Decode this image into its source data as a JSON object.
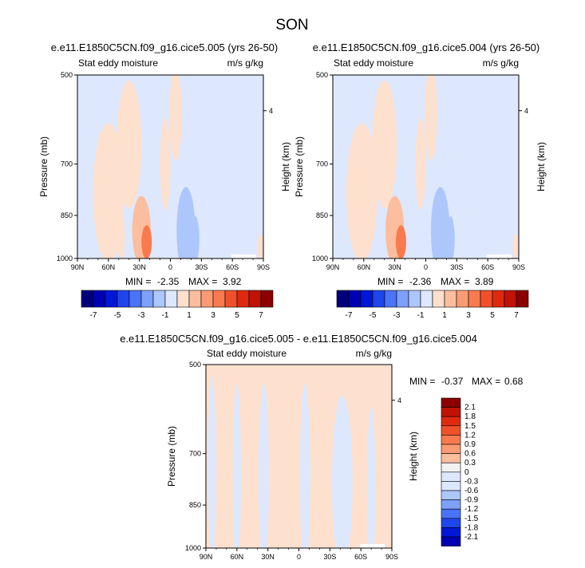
{
  "page_title": "SON",
  "palette": {
    "neg": [
      "#00007d",
      "#0000b3",
      "#0018d6",
      "#1f45ec",
      "#4a74f7",
      "#7da0fa",
      "#adc6fb",
      "#dde8fe"
    ],
    "zero": "#f2f2f2",
    "pos": [
      "#fde0cd",
      "#fcbe9e",
      "#fb9b74",
      "#f97a4e",
      "#f1512a",
      "#df2a10",
      "#c01306",
      "#8b0000"
    ],
    "missing": "#ffffff"
  },
  "chart_data": [
    {
      "type": "heatmap",
      "title": "e.e11.E1850C5CN.f09_g16.cice5.005 (yrs 26-50)",
      "left_string": "Stat eddy moisture",
      "right_string": "m/s g/kg",
      "ylabel": "Pressure (mb)",
      "ylabel_right": "Height (km)",
      "xticks": [
        "90N",
        "60N",
        "30N",
        "0",
        "30S",
        "60S",
        "90S"
      ],
      "yticks": [
        "500",
        "700",
        "850",
        "1000"
      ],
      "yticks_right": [
        "4"
      ],
      "min_label": "MIN = ",
      "min": "-2.35",
      "max_label": "MAX = ",
      "max": "3.92",
      "levels": [
        "-7",
        "-5",
        "-3",
        "-1",
        "1",
        "3",
        "5",
        "7"
      ],
      "blobs": [
        {
          "lat": 60,
          "p": 780,
          "rx": 15,
          "ry": 200,
          "v": 1
        },
        {
          "lat": 40,
          "p": 650,
          "rx": 12,
          "ry": 160,
          "v": 1
        },
        {
          "lat": 28,
          "p": 900,
          "rx": 9,
          "ry": 130,
          "v": 2
        },
        {
          "lat": 23,
          "p": 940,
          "rx": 5,
          "ry": 60,
          "v": 4
        },
        {
          "lat": 48,
          "p": 920,
          "rx": 4,
          "ry": 80,
          "v": 1
        },
        {
          "lat": 5,
          "p": 700,
          "rx": 5,
          "ry": 120,
          "v": 1
        },
        {
          "lat": -15,
          "p": 900,
          "rx": 9,
          "ry": 180,
          "v": -2
        },
        {
          "lat": -24,
          "p": 930,
          "rx": 4,
          "ry": 90,
          "v": -2
        },
        {
          "lat": -55,
          "p": 950,
          "rx": 8,
          "ry": 110,
          "v": -1
        },
        {
          "lat": -75,
          "p": 880,
          "rx": 10,
          "ry": 160,
          "v": -1
        },
        {
          "lat": 80,
          "p": 580,
          "rx": 8,
          "ry": 130,
          "v": -1
        },
        {
          "lat": -5,
          "p": 580,
          "rx": 6,
          "ry": 130,
          "v": 1
        },
        {
          "lat": -87,
          "p": 960,
          "rx": 3,
          "ry": 60,
          "v": 1
        }
      ]
    },
    {
      "type": "heatmap",
      "title": "e.e11.E1850C5CN.f09_g16.cice5.004 (yrs 26-50)",
      "left_string": "Stat eddy moisture",
      "right_string": "m/s g/kg",
      "ylabel": "Pressure (mb)",
      "ylabel_right": "Height (km)",
      "xticks": [
        "90N",
        "60N",
        "30N",
        "0",
        "30S",
        "60S",
        "90S"
      ],
      "yticks": [
        "500",
        "700",
        "850",
        "1000"
      ],
      "yticks_right": [
        "4"
      ],
      "min_label": "MIN = ",
      "min": "-2.36",
      "max_label": "MAX = ",
      "max": "3.89",
      "levels": [
        "-7",
        "-5",
        "-3",
        "-1",
        "1",
        "3",
        "5",
        "7"
      ],
      "blobs": [
        {
          "lat": 62,
          "p": 780,
          "rx": 15,
          "ry": 200,
          "v": 1
        },
        {
          "lat": 40,
          "p": 650,
          "rx": 12,
          "ry": 160,
          "v": 1
        },
        {
          "lat": 30,
          "p": 900,
          "rx": 9,
          "ry": 130,
          "v": 2
        },
        {
          "lat": 24,
          "p": 940,
          "rx": 5,
          "ry": 60,
          "v": 4
        },
        {
          "lat": 5,
          "p": 700,
          "rx": 5,
          "ry": 120,
          "v": 1
        },
        {
          "lat": -14,
          "p": 900,
          "rx": 9,
          "ry": 180,
          "v": -2
        },
        {
          "lat": -24,
          "p": 930,
          "rx": 4,
          "ry": 90,
          "v": -2
        },
        {
          "lat": -55,
          "p": 950,
          "rx": 8,
          "ry": 110,
          "v": -1
        },
        {
          "lat": -75,
          "p": 880,
          "rx": 10,
          "ry": 160,
          "v": -1
        },
        {
          "lat": 80,
          "p": 580,
          "rx": 8,
          "ry": 130,
          "v": -1
        },
        {
          "lat": -5,
          "p": 580,
          "rx": 6,
          "ry": 130,
          "v": 1
        },
        {
          "lat": -87,
          "p": 960,
          "rx": 3,
          "ry": 60,
          "v": 1
        }
      ]
    },
    {
      "type": "heatmap",
      "title": "e.e11.E1850C5CN.f09_g16.cice5.005 - e.e11.E1850C5CN.f09_g16.cice5.004",
      "left_string": "Stat eddy moisture",
      "right_string": "m/s g/kg",
      "ylabel": "Pressure (mb)",
      "ylabel_right": "Height (km)",
      "xticks": [
        "90N",
        "60N",
        "30N",
        "0",
        "30S",
        "60S",
        "90S"
      ],
      "yticks": [
        "500",
        "700",
        "850",
        "1000"
      ],
      "yticks_right": [
        "4"
      ],
      "min_label": "MIN = ",
      "min": "-0.37",
      "max_label": "MAX = ",
      "max": "0.68",
      "levels": [
        "2.1",
        "1.8",
        "1.5",
        "1.2",
        "0.9",
        "0.6",
        "0.3",
        "0",
        "-0.3",
        "-0.6",
        "-0.9",
        "-1.2",
        "-1.5",
        "-1.8",
        "-2.1"
      ],
      "blobs": [
        {
          "lat": 72,
          "p": 750,
          "rx": 7,
          "ry": 260,
          "v": 1
        },
        {
          "lat": 48,
          "p": 820,
          "rx": 9,
          "ry": 240,
          "v": 1
        },
        {
          "lat": 22,
          "p": 760,
          "rx": 6,
          "ry": 260,
          "v": 1
        },
        {
          "lat": 6,
          "p": 780,
          "rx": 5,
          "ry": 260,
          "v": 1
        },
        {
          "lat": -18,
          "p": 760,
          "rx": 7,
          "ry": 260,
          "v": 1
        },
        {
          "lat": -60,
          "p": 800,
          "rx": 6,
          "ry": 220,
          "v": 1
        },
        {
          "lat": -82,
          "p": 780,
          "rx": 5,
          "ry": 260,
          "v": 1
        },
        {
          "lat": 84,
          "p": 740,
          "rx": 4,
          "ry": 260,
          "v": -1
        },
        {
          "lat": 60,
          "p": 760,
          "rx": 4,
          "ry": 260,
          "v": -1
        },
        {
          "lat": 34,
          "p": 760,
          "rx": 5,
          "ry": 260,
          "v": -1
        },
        {
          "lat": -6,
          "p": 760,
          "rx": 5,
          "ry": 260,
          "v": -1
        },
        {
          "lat": -42,
          "p": 780,
          "rx": 10,
          "ry": 260,
          "v": -1
        },
        {
          "lat": -70,
          "p": 800,
          "rx": 4,
          "ry": 260,
          "v": -1
        }
      ]
    }
  ]
}
